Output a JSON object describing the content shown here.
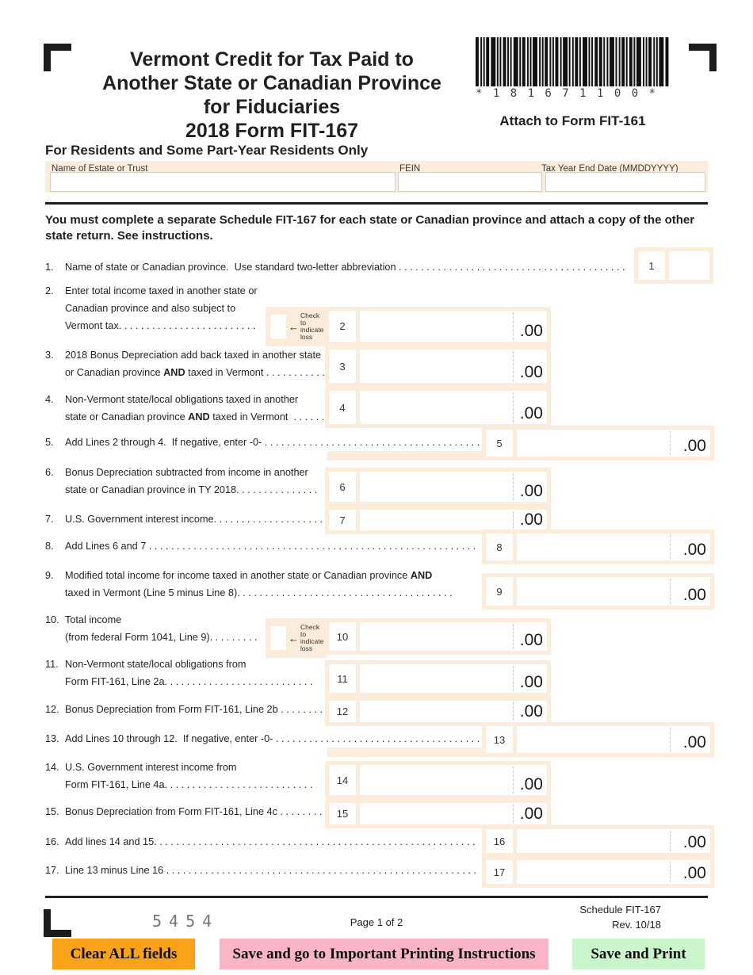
{
  "form": {
    "title_lines": [
      "Vermont Credit for Tax Paid to",
      "Another State or Canadian Province",
      "for Fiduciaries",
      "2018 Form FIT-167"
    ],
    "barcode_text": "* 1 8 1 6 7 1 1 0 0 *",
    "attach_note": "Attach to Form FIT-161",
    "residents_heading": "For Residents and Some Part-Year Residents Only",
    "instructions": "You must complete a separate Schedule FIT-167 for each state or Canadian province and attach a copy of the other state return.  See instructions."
  },
  "header_fields": [
    {
      "label": "Name of Estate or Trust",
      "value": ""
    },
    {
      "label": "FEIN",
      "value": ""
    },
    {
      "label": "Tax Year End Date (MMDDYYYY)",
      "value": ""
    }
  ],
  "loss_checkbox_label": "Check to indicate loss",
  "amount_suffix": ".00",
  "lines": [
    {
      "num": "1.",
      "box": "1",
      "value": "",
      "text_lines": [
        "Name of state or Canadian province.  Use standard two-letter abbreviation . . . . . . . . . . . . . . . . . . . . . . . . . . . . . . . . . . . . . . . . . "
      ]
    },
    {
      "num": "2.",
      "box": "2",
      "value": "",
      "loss_checkbox": true,
      "text_lines": [
        "Enter total income taxed in another state or",
        "Canadian province and also subject to",
        "Vermont tax. . . . . . . . . . . . . . . . . . . . . . . . . "
      ]
    },
    {
      "num": "3.",
      "box": "3",
      "value": "",
      "text_lines": [
        "2018 Bonus Depreciation add back taxed in another state",
        "or Canadian province AND taxed in Vermont . . . . . . . . . . . "
      ]
    },
    {
      "num": "4.",
      "box": "4",
      "value": "",
      "text_lines": [
        "Non-Vermont state/local obligations taxed in another",
        "state or Canadian province AND taxed in Vermont  . . . . . . "
      ]
    },
    {
      "num": "5.",
      "box": "5",
      "value": "",
      "text_lines": [
        "Add Lines 2 through 4.  If negative, enter -0- . . . . . . . . . . . . . . . . . . . . . . . . . . . . . . . . . . . . . . . . . "
      ]
    },
    {
      "num": "6.",
      "box": "6",
      "value": "",
      "text_lines": [
        "Bonus Depreciation subtracted from income in another",
        "state or Canadian province in TY 2018. . . . . . . . . . . . . . . "
      ]
    },
    {
      "num": "7.",
      "box": "7",
      "value": "",
      "text_lines": [
        "U.S. Government interest income. . . . . . . . . . . . . . . . . . . . "
      ]
    },
    {
      "num": "8.",
      "box": "8",
      "value": "",
      "text_lines": [
        "Add Lines 6 and 7 . . . . . . . . . . . . . . . . . . . . . . . . . . . . . . . . . . . . . . . . . . . . . . . . . . . . . . . . . . . "
      ]
    },
    {
      "num": "9.",
      "box": "9",
      "value": "",
      "text_lines": [
        "Modified total income for income taxed in another state or Canadian province AND",
        "taxed in Vermont (Line 5 minus Line 8). . . . . . . . . . . . . . . . . . . . . . . . . . . . . . . . . . . . . . . "
      ]
    },
    {
      "num": "10.",
      "box": "10",
      "value": "",
      "loss_checkbox": true,
      "text_lines": [
        "Total income",
        "(from federal Form 1041, Line 9). . . . . . . . . "
      ]
    },
    {
      "num": "11.",
      "box": "11",
      "value": "",
      "text_lines": [
        "Non-Vermont state/local obligations from",
        "Form FIT-161, Line 2a. . . . . . . . . . . . . . . . . . . . . . . . . . . "
      ]
    },
    {
      "num": "12.",
      "box": "12",
      "value": "",
      "text_lines": [
        "Bonus Depreciation from Form FIT-161, Line 2b . . . . . . . . "
      ]
    },
    {
      "num": "13.",
      "box": "13",
      "value": "",
      "text_lines": [
        "Add Lines 10 through 12.  If negative, enter -0- . . . . . . . . . . . . . . . . . . . . . . . . . . . . . . . . . . . . . "
      ]
    },
    {
      "num": "14.",
      "box": "14",
      "value": "",
      "text_lines": [
        "U.S. Government interest income from",
        "Form FIT-161, Line 4a. . . . . . . . . . . . . . . . . . . . . . . . . . . "
      ]
    },
    {
      "num": "15.",
      "box": "15",
      "value": "",
      "text_lines": [
        "Bonus Depreciation from Form FIT-161, Line 4c . . . . . . . . "
      ]
    },
    {
      "num": "16.",
      "box": "16",
      "value": "",
      "text_lines": [
        "Add lines 14 and 15. . . . . . . . . . . . . . . . . . . . . . . . . . . . . . . . . . . . . . . . . . . . . . . . . . . . . . . . . . "
      ]
    },
    {
      "num": "17.",
      "box": "17",
      "value": "",
      "text_lines": [
        "Line 13 minus Line 16 . . . . . . . . . . . . . . . . . . . . . . . . . . . . . . . . . . . . . . . . . . . . . . . . . . . . . . . . "
      ]
    }
  ],
  "footer": {
    "doc_code": "5454",
    "page_indicator": "Page 1 of 2",
    "schedule": "Schedule FIT-167",
    "revision": "Rev. 10/18"
  },
  "buttons": [
    {
      "label": "Clear ALL fields",
      "color": "#f9a21a"
    },
    {
      "label": "Save and go to Important Printing Instructions",
      "color": "#f9b4c6"
    },
    {
      "label": "Save and Print",
      "color": "#caf4ca"
    }
  ]
}
